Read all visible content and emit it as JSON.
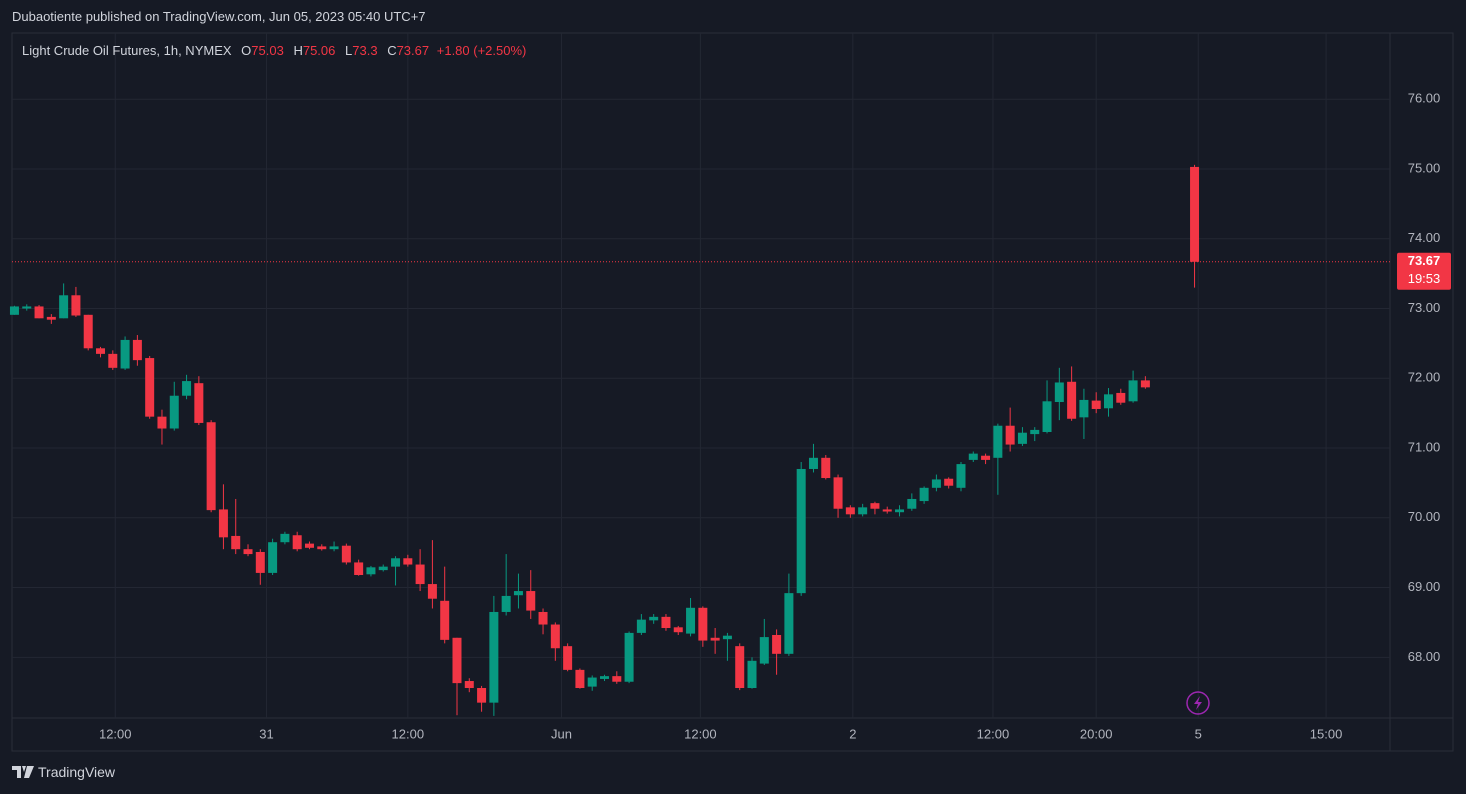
{
  "header": {
    "published": "Dubaotiente published on TradingView.com, Jun 05, 2023 05:40 UTC+7"
  },
  "footer": {
    "brand": "TradingView"
  },
  "chart_data": {
    "type": "candlestick",
    "title": "Light Crude Oil Futures, 1h, NYMEX",
    "ohlc_keys": [
      "O",
      "H",
      "L",
      "C"
    ],
    "change_label": "+1.80 (+2.50%)",
    "countdown": "19:53",
    "up_color": "#089981",
    "down_color": "#f23645",
    "grid": true,
    "price_line": true,
    "x": [
      0,
      1,
      2,
      3,
      4,
      5,
      6,
      7,
      8,
      9,
      10,
      11,
      12,
      13,
      14,
      15,
      16,
      17,
      18,
      19,
      20,
      21,
      22,
      23,
      24,
      25,
      26,
      27,
      28,
      29,
      30,
      31,
      32,
      33,
      34,
      35,
      36,
      37,
      38,
      39,
      40,
      41,
      42,
      43,
      44,
      45,
      46,
      47,
      48,
      49,
      50,
      51,
      52,
      53,
      54,
      55,
      56,
      57,
      58,
      59,
      60,
      61,
      62,
      63,
      64,
      65,
      66,
      67,
      68,
      69,
      70,
      71,
      72,
      73,
      74,
      75,
      76,
      77,
      78,
      79,
      80,
      81,
      82,
      83,
      84,
      85,
      86,
      87,
      88,
      89,
      90,
      91,
      92,
      96
    ],
    "open": [
      72.91,
      73.0,
      73.03,
      72.88,
      72.86,
      73.19,
      72.91,
      72.43,
      72.35,
      72.14,
      72.55,
      72.29,
      71.45,
      71.28,
      71.75,
      71.93,
      71.37,
      70.12,
      69.74,
      69.55,
      69.51,
      69.21,
      69.65,
      69.75,
      69.63,
      69.59,
      69.55,
      69.6,
      69.36,
      69.19,
      69.25,
      69.3,
      69.42,
      69.33,
      69.05,
      68.81,
      68.28,
      67.66,
      67.56,
      67.35,
      68.65,
      68.89,
      68.95,
      68.65,
      68.47,
      68.16,
      67.82,
      67.58,
      67.69,
      67.73,
      67.65,
      68.35,
      68.53,
      68.58,
      68.43,
      68.34,
      68.71,
      68.28,
      68.26,
      68.16,
      67.56,
      67.91,
      68.32,
      68.05,
      68.92,
      70.7,
      70.86,
      70.58,
      70.15,
      70.05,
      70.21,
      70.12,
      70.08,
      70.13,
      70.24,
      70.43,
      70.56,
      70.43,
      70.83,
      70.89,
      70.86,
      71.32,
      71.06,
      71.2,
      71.23,
      71.66,
      71.95,
      71.44,
      71.68,
      71.57,
      71.79,
      71.67,
      71.97,
      75.03
    ],
    "high": [
      73.04,
      73.06,
      73.05,
      72.92,
      73.36,
      73.31,
      72.91,
      72.45,
      72.4,
      72.6,
      72.62,
      72.32,
      71.55,
      71.95,
      72.05,
      72.03,
      71.4,
      70.48,
      70.27,
      69.62,
      69.55,
      69.7,
      69.8,
      69.8,
      69.66,
      69.62,
      69.66,
      69.63,
      69.4,
      69.31,
      69.33,
      69.45,
      69.47,
      69.55,
      69.68,
      69.3,
      68.28,
      67.7,
      67.59,
      68.88,
      69.48,
      69.2,
      69.25,
      68.7,
      68.5,
      68.2,
      67.84,
      67.74,
      67.75,
      67.8,
      68.37,
      68.62,
      68.62,
      68.62,
      68.45,
      68.85,
      68.73,
      68.42,
      68.35,
      68.2,
      68.0,
      68.55,
      68.4,
      69.2,
      70.8,
      71.06,
      70.9,
      70.62,
      70.18,
      70.2,
      70.23,
      70.16,
      70.18,
      70.35,
      70.45,
      70.62,
      70.58,
      70.8,
      70.95,
      70.92,
      71.35,
      71.58,
      71.3,
      71.3,
      71.97,
      72.15,
      72.17,
      71.85,
      71.8,
      71.86,
      71.85,
      72.11,
      72.03,
      75.06
    ],
    "low": [
      72.91,
      72.97,
      72.86,
      72.78,
      72.86,
      72.88,
      72.4,
      72.3,
      72.12,
      72.12,
      72.18,
      71.42,
      71.05,
      71.25,
      71.7,
      71.33,
      70.08,
      69.55,
      69.48,
      69.45,
      69.04,
      69.18,
      69.62,
      69.52,
      69.55,
      69.53,
      69.52,
      69.33,
      69.17,
      69.16,
      69.23,
      69.03,
      69.3,
      68.95,
      68.7,
      68.2,
      67.17,
      67.5,
      67.22,
      67.16,
      68.6,
      68.7,
      68.55,
      68.33,
      67.95,
      67.8,
      67.55,
      67.52,
      67.66,
      67.62,
      67.63,
      68.32,
      68.48,
      68.38,
      68.32,
      68.3,
      68.15,
      68.05,
      67.95,
      67.53,
      67.55,
      67.89,
      67.75,
      68.02,
      68.88,
      70.65,
      70.55,
      70.0,
      70.0,
      70.02,
      70.05,
      70.06,
      70.02,
      70.1,
      70.2,
      70.38,
      70.42,
      70.38,
      70.8,
      70.77,
      70.33,
      70.95,
      71.03,
      71.1,
      71.21,
      71.4,
      71.39,
      71.13,
      71.5,
      71.45,
      71.62,
      71.65,
      71.85,
      73.3
    ],
    "close": [
      73.03,
      73.03,
      72.86,
      72.84,
      73.19,
      72.9,
      72.43,
      72.35,
      72.15,
      72.55,
      72.26,
      71.45,
      71.28,
      71.75,
      71.96,
      71.36,
      70.11,
      69.72,
      69.55,
      69.48,
      69.21,
      69.65,
      69.77,
      69.55,
      69.57,
      69.55,
      69.59,
      69.36,
      69.18,
      69.29,
      69.3,
      69.42,
      69.33,
      69.05,
      68.84,
      68.25,
      67.63,
      67.56,
      67.35,
      68.65,
      68.88,
      68.95,
      68.67,
      68.47,
      68.13,
      67.82,
      67.56,
      67.71,
      67.73,
      67.65,
      68.35,
      68.54,
      68.58,
      68.42,
      68.36,
      68.71,
      68.24,
      68.24,
      68.31,
      67.56,
      67.95,
      68.29,
      68.05,
      68.92,
      70.7,
      70.86,
      70.57,
      70.13,
      70.05,
      70.15,
      70.13,
      70.09,
      70.12,
      70.27,
      70.43,
      70.55,
      70.46,
      70.77,
      70.92,
      70.83,
      71.32,
      71.05,
      71.22,
      71.26,
      71.67,
      71.94,
      71.42,
      71.69,
      71.56,
      71.77,
      71.65,
      71.97,
      71.87,
      73.67
    ],
    "xlim": [
      -0.2,
      111.9
    ],
    "xticks": [
      {
        "value": 8.2,
        "label": "12:00"
      },
      {
        "value": 20.5,
        "label": "31"
      },
      {
        "value": 32.0,
        "label": "12:00"
      },
      {
        "value": 44.5,
        "label": "Jun"
      },
      {
        "value": 55.8,
        "label": "12:00"
      },
      {
        "value": 68.2,
        "label": "2"
      },
      {
        "value": 79.6,
        "label": "12:00"
      },
      {
        "value": 88.0,
        "label": "20:00"
      },
      {
        "value": 96.3,
        "label": "5"
      },
      {
        "value": 106.7,
        "label": "15:00"
      }
    ],
    "ylim": [
      67.13,
      76.95
    ],
    "yticks": [
      {
        "value": 68,
        "label": "68.00"
      },
      {
        "value": 69,
        "label": "69.00"
      },
      {
        "value": 70,
        "label": "70.00"
      },
      {
        "value": 71,
        "label": "71.00"
      },
      {
        "value": 72,
        "label": "72.00"
      },
      {
        "value": 73,
        "label": "73.00"
      },
      {
        "value": 74,
        "label": "74.00"
      },
      {
        "value": 75,
        "label": "75.00"
      },
      {
        "value": 76,
        "label": "76.00"
      }
    ]
  }
}
